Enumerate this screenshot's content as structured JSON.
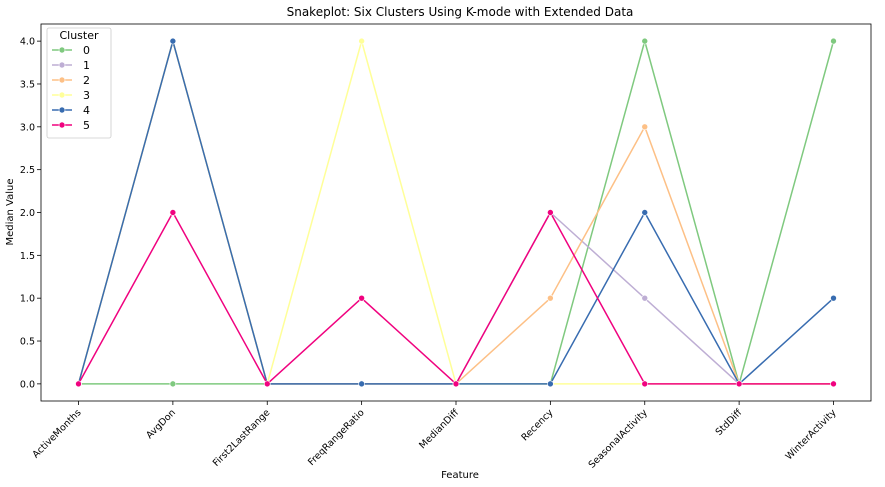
{
  "chart_data": {
    "type": "line",
    "title": "Snakeplot: Six Clusters Using K-mode with Extended Data",
    "xlabel": "Feature",
    "ylabel": "Median Value",
    "categories": [
      "ActiveMonths",
      "AvgDon",
      "First2LastRange",
      "FreqRangeRatio",
      "MedianDiff",
      "Recency",
      "SeasonalActivity",
      "StdDiff",
      "WinterActivity"
    ],
    "ylim": [
      -0.2,
      4.2
    ],
    "yticks": [
      "0.0",
      "0.5",
      "1.0",
      "1.5",
      "2.0",
      "2.5",
      "3.0",
      "3.5",
      "4.0"
    ],
    "grid": false,
    "legend": {
      "title": "Cluster",
      "placement": "top-left"
    },
    "series": [
      {
        "name": "0",
        "color": "#7fc97f",
        "values": [
          0,
          0,
          0,
          0,
          0,
          0,
          4,
          0,
          4
        ]
      },
      {
        "name": "1",
        "color": "#beaed4",
        "values": [
          0,
          4,
          0,
          0,
          0,
          2,
          1,
          0,
          0
        ]
      },
      {
        "name": "2",
        "color": "#fdc086",
        "values": [
          0,
          4,
          0,
          0,
          0,
          1,
          3,
          0,
          0
        ]
      },
      {
        "name": "3",
        "color": "#ffff99",
        "values": [
          0,
          4,
          0,
          4,
          0,
          0,
          0,
          0,
          0
        ]
      },
      {
        "name": "4",
        "color": "#386cb0",
        "values": [
          0,
          4,
          0,
          0,
          0,
          0,
          2,
          0,
          1
        ]
      },
      {
        "name": "5",
        "color": "#f0027f",
        "values": [
          0,
          2,
          0,
          1,
          0,
          2,
          0,
          0,
          0
        ]
      }
    ]
  }
}
